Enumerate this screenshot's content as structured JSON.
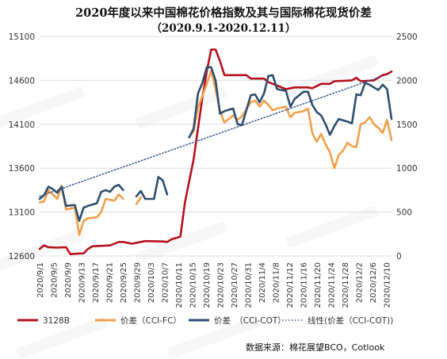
{
  "title_line1": "2020年度以来中国棉花价格指数及其与国际棉花现货价差",
  "title_line2": "（2020.9.1-2020.12.11）",
  "source": "数据来源：棉花展望BCO，Cotlook",
  "colors": {
    "s3128b": "#b5101e",
    "fc": "#f0a04b",
    "cot": "#2f4e6f",
    "trend": "#3c5a8a",
    "grid": "#dddddd"
  },
  "chart_data": {
    "type": "line",
    "left_axis": {
      "min": 12600,
      "max": 15100,
      "ticks": [
        12600,
        13100,
        13600,
        14100,
        14600,
        15100
      ]
    },
    "right_axis": {
      "min": 0,
      "max": 2500,
      "ticks": [
        0,
        500,
        1000,
        1500,
        2000,
        2500
      ]
    },
    "x_tick_labels": [
      "2020/9/1",
      "2020/9/5",
      "2020/9/9",
      "2020/9/13",
      "2020/9/17",
      "2020/9/21",
      "2020/9/25",
      "2020/9/29",
      "2020/10/3",
      "2020/10/7",
      "2020/10/11",
      "2020/10/15",
      "2020/10/19",
      "2020/10/23",
      "2020/10/27",
      "2020/10/31",
      "2020/11/4",
      "2020/11/8",
      "2020/11/12",
      "2020/11/16",
      "2020/11/20",
      "2020/11/24",
      "2020/11/28",
      "2020/12/2",
      "2020/12/6",
      "2020/12/10"
    ],
    "legend": [
      "3128B",
      "价差（CCI-FC）",
      "价差　（CCI-COT）",
      "线性(价差（CCI-COT))"
    ],
    "series": [
      {
        "name": "3128B",
        "axis": "left",
        "color_key": "s3128b",
        "points": [
          [
            0,
            12680
          ],
          [
            1,
            12720
          ],
          [
            2,
            12700
          ],
          [
            4,
            12695
          ],
          [
            6,
            12700
          ],
          [
            7,
            12620
          ],
          [
            8,
            12625
          ],
          [
            10,
            12630
          ],
          [
            11,
            12680
          ],
          [
            12,
            12710
          ],
          [
            16,
            12720
          ],
          [
            18,
            12760
          ],
          [
            19,
            12760
          ],
          [
            21,
            12740
          ],
          [
            23,
            12760
          ],
          [
            24,
            12770
          ],
          [
            28,
            12765
          ],
          [
            29,
            12760
          ],
          [
            30,
            12790
          ],
          [
            32,
            12820
          ],
          [
            33,
            13200
          ],
          [
            34,
            13450
          ],
          [
            35,
            13700
          ],
          [
            36,
            14050
          ],
          [
            37,
            14400
          ],
          [
            38,
            14700
          ],
          [
            39,
            14950
          ],
          [
            40,
            14950
          ],
          [
            41,
            14820
          ],
          [
            42,
            14660
          ],
          [
            47,
            14660
          ],
          [
            48,
            14620
          ],
          [
            51,
            14620
          ],
          [
            52,
            14580
          ],
          [
            54,
            14540
          ],
          [
            56,
            14500
          ],
          [
            58,
            14520
          ],
          [
            61,
            14520
          ],
          [
            62,
            14510
          ],
          [
            64,
            14560
          ],
          [
            66,
            14560
          ],
          [
            67,
            14590
          ],
          [
            71,
            14600
          ],
          [
            72,
            14630
          ],
          [
            73,
            14590
          ],
          [
            76,
            14600
          ],
          [
            78,
            14660
          ],
          [
            79,
            14670
          ],
          [
            80,
            14700
          ]
        ]
      },
      {
        "name": "价差（CCI-FC）",
        "axis": "right",
        "color_key": "fc",
        "segments": [
          [
            [
              0,
              610
            ],
            [
              1,
              620
            ],
            [
              2,
              750
            ],
            [
              3,
              700
            ],
            [
              4,
              650
            ],
            [
              5,
              800
            ],
            [
              6,
              530
            ],
            [
              8,
              550
            ],
            [
              9,
              240
            ],
            [
              10,
              400
            ],
            [
              11,
              430
            ],
            [
              13,
              440
            ],
            [
              14,
              500
            ],
            [
              15,
              650
            ],
            [
              17,
              630
            ],
            [
              18,
              700
            ],
            [
              19,
              650
            ]
          ],
          [
            [
              22,
              590
            ],
            [
              23,
              670
            ]
          ],
          [
            [
              34,
              1360
            ],
            [
              35,
              1420
            ],
            [
              36,
              1690
            ],
            [
              37,
              1820
            ],
            [
              38,
              1960
            ],
            [
              39,
              2110
            ],
            [
              40,
              1900
            ],
            [
              41,
              1650
            ],
            [
              42,
              1520
            ],
            [
              44,
              1600
            ],
            [
              45,
              1550
            ],
            [
              46,
              1590
            ],
            [
              48,
              1750
            ],
            [
              49,
              1770
            ],
            [
              50,
              1700
            ],
            [
              51,
              1770
            ],
            [
              52,
              1720
            ],
            [
              53,
              1660
            ],
            [
              54,
              1680
            ],
            [
              56,
              1700
            ],
            [
              57,
              1580
            ],
            [
              58,
              1630
            ],
            [
              60,
              1650
            ],
            [
              61,
              1680
            ],
            [
              62,
              1400
            ],
            [
              63,
              1300
            ],
            [
              64,
              1390
            ],
            [
              65,
              1270
            ],
            [
              66,
              1180
            ],
            [
              67,
              1000
            ],
            [
              68,
              1150
            ],
            [
              69,
              1200
            ],
            [
              70,
              1290
            ],
            [
              71,
              1250
            ],
            [
              72,
              1240
            ],
            [
              73,
              1500
            ],
            [
              74,
              1520
            ],
            [
              75,
              1580
            ],
            [
              76,
              1500
            ],
            [
              77,
              1460
            ],
            [
              78,
              1400
            ],
            [
              79,
              1550
            ],
            [
              80,
              1320
            ]
          ]
        ]
      },
      {
        "name": "价差　（CCI-COT）",
        "axis": "right",
        "color_key": "cot",
        "segments": [
          [
            [
              0,
              650
            ],
            [
              1,
              690
            ],
            [
              2,
              790
            ],
            [
              3,
              760
            ],
            [
              4,
              720
            ],
            [
              5,
              790
            ],
            [
              6,
              570
            ],
            [
              8,
              580
            ],
            [
              9,
              400
            ],
            [
              10,
              550
            ],
            [
              11,
              570
            ],
            [
              13,
              600
            ],
            [
              14,
              730
            ],
            [
              15,
              750
            ],
            [
              16,
              730
            ],
            [
              17,
              790
            ],
            [
              18,
              810
            ],
            [
              19,
              750
            ]
          ],
          [
            [
              22,
              680
            ],
            [
              23,
              740
            ],
            [
              24,
              650
            ],
            [
              26,
              650
            ],
            [
              27,
              900
            ],
            [
              28,
              860
            ],
            [
              29,
              700
            ]
          ],
          [
            [
              34,
              1350
            ],
            [
              35,
              1450
            ],
            [
              36,
              1850
            ],
            [
              37,
              1970
            ],
            [
              38,
              2150
            ],
            [
              39,
              2150
            ],
            [
              40,
              2000
            ],
            [
              41,
              1620
            ],
            [
              42,
              1650
            ],
            [
              44,
              1680
            ],
            [
              45,
              1500
            ],
            [
              46,
              1490
            ],
            [
              48,
              1830
            ],
            [
              49,
              1840
            ],
            [
              50,
              1750
            ],
            [
              51,
              1850
            ],
            [
              52,
              2050
            ],
            [
              53,
              2060
            ],
            [
              54,
              1900
            ],
            [
              56,
              1880
            ],
            [
              57,
              1700
            ],
            [
              58,
              1790
            ],
            [
              60,
              1870
            ],
            [
              61,
              1870
            ],
            [
              62,
              1720
            ],
            [
              63,
              1640
            ],
            [
              64,
              1600
            ],
            [
              65,
              1500
            ],
            [
              66,
              1380
            ],
            [
              67,
              1480
            ],
            [
              68,
              1560
            ],
            [
              70,
              1530
            ],
            [
              71,
              1510
            ],
            [
              72,
              1840
            ],
            [
              73,
              1830
            ],
            [
              74,
              1970
            ],
            [
              75,
              1950
            ],
            [
              76,
              1920
            ],
            [
              77,
              1890
            ],
            [
              78,
              1950
            ],
            [
              79,
              1900
            ],
            [
              80,
              1560
            ]
          ]
        ]
      },
      {
        "name": "线性(价差（CCI-COT))",
        "axis": "right",
        "color_key": "trend",
        "style": "dotted",
        "points": [
          [
            0,
            680
          ],
          [
            78,
            2050
          ]
        ]
      }
    ],
    "x_count": 81
  }
}
